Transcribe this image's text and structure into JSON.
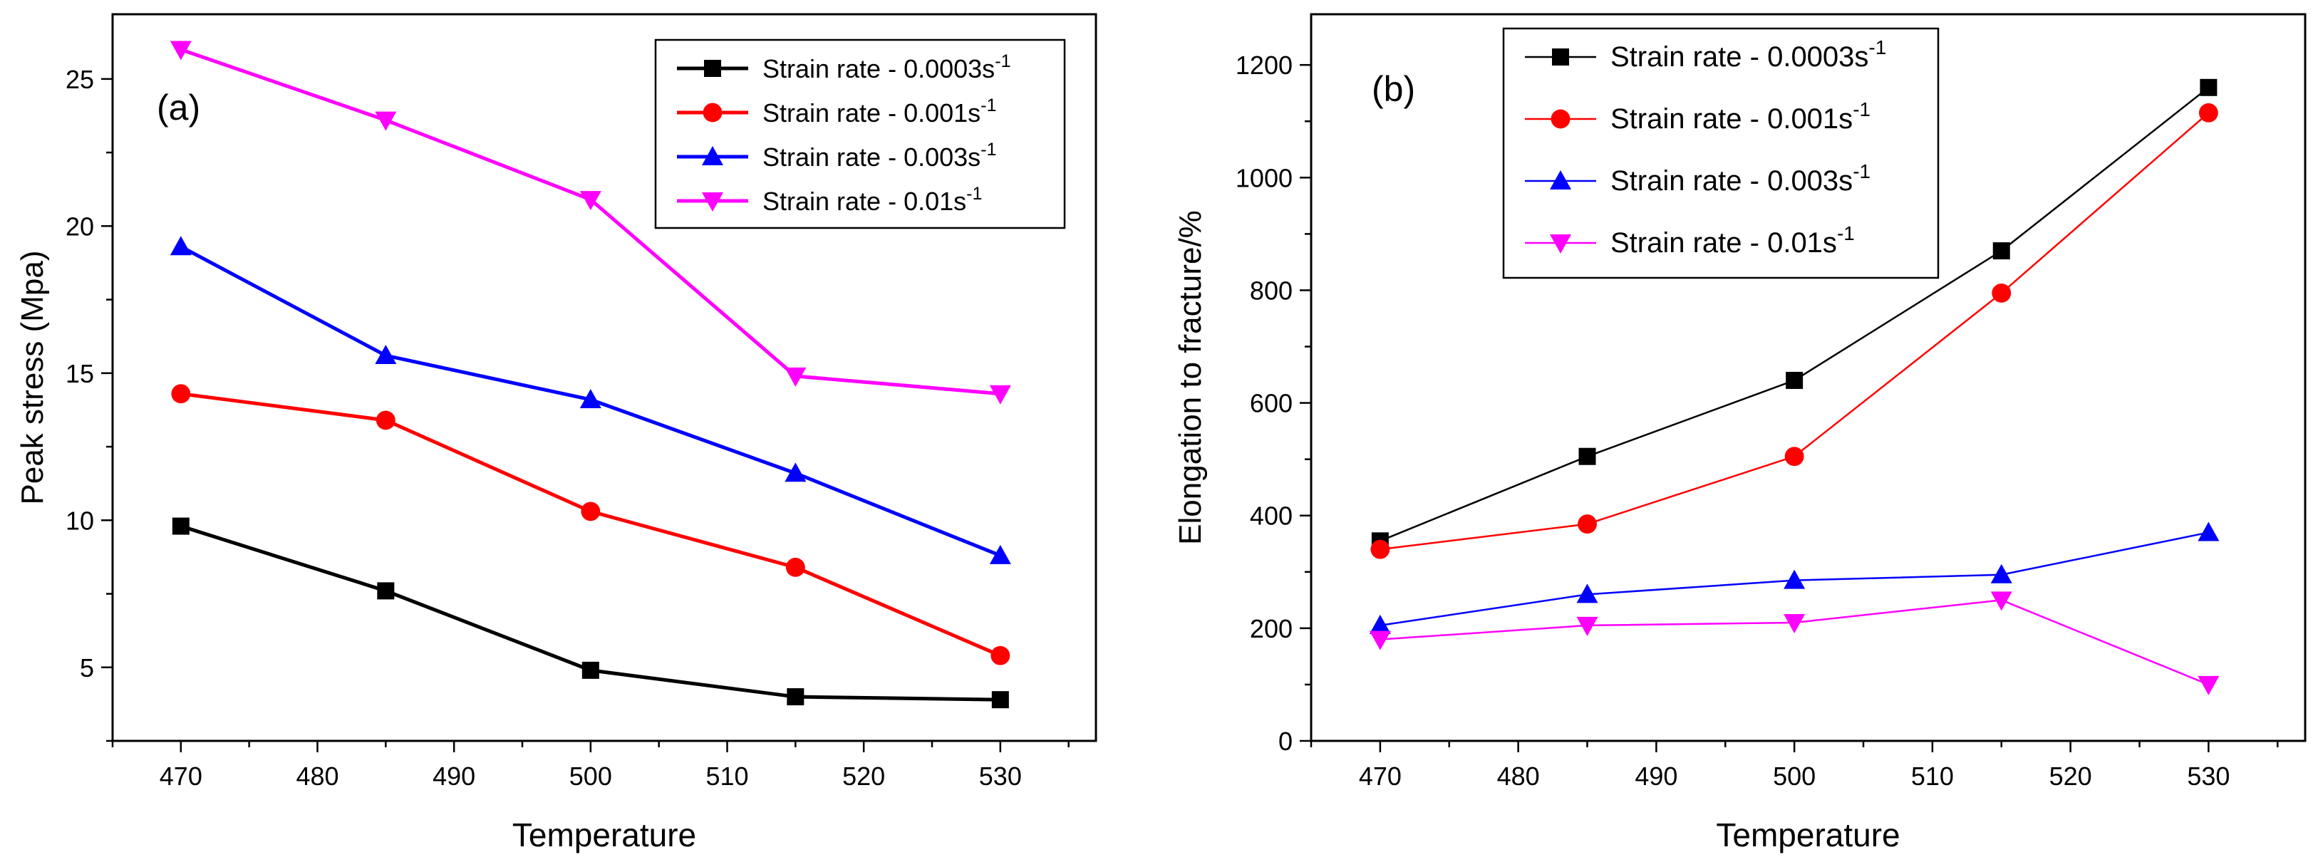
{
  "chart_data": [
    {
      "type": "line",
      "panel_label": "(a)",
      "xlabel": "Temperature",
      "ylabel": "Peak stress (Mpa)",
      "xlim": [
        465,
        537
      ],
      "ylim": [
        2.5,
        27.2
      ],
      "xticks": [
        470,
        480,
        490,
        500,
        510,
        520,
        530
      ],
      "yticks": [
        5,
        10,
        15,
        20,
        25
      ],
      "legend_position": "top-right",
      "x": [
        470,
        485,
        500,
        515,
        530
      ],
      "series": [
        {
          "name": "Strain rate - 0.0003s",
          "sup": "-1",
          "color": "#000000",
          "marker": "square",
          "values": [
            9.8,
            7.6,
            4.9,
            4.0,
            3.9
          ]
        },
        {
          "name": "Strain rate - 0.001s",
          "sup": "-1",
          "color": "#ff0000",
          "marker": "circle",
          "values": [
            14.3,
            13.4,
            10.3,
            8.4,
            5.4
          ]
        },
        {
          "name": "Strain rate - 0.003s",
          "sup": "-1",
          "color": "#0000ff",
          "marker": "triangle-up",
          "values": [
            19.3,
            15.6,
            14.1,
            11.6,
            8.8
          ]
        },
        {
          "name": "Strain rate - 0.01s",
          "sup": "-1",
          "color": "#ff00ff",
          "marker": "triangle-down",
          "values": [
            26.0,
            23.6,
            20.9,
            14.9,
            14.3
          ]
        }
      ]
    },
    {
      "type": "line",
      "panel_label": "(b)",
      "xlabel": "Temperature",
      "ylabel": "Elongation to fracture/%",
      "xlim": [
        465,
        537
      ],
      "ylim": [
        0,
        1290
      ],
      "xticks": [
        470,
        480,
        490,
        500,
        510,
        520,
        530
      ],
      "yticks": [
        0,
        200,
        400,
        600,
        800,
        1000,
        1200
      ],
      "legend_position": "top-right",
      "x": [
        470,
        485,
        500,
        515,
        530
      ],
      "series": [
        {
          "name": "Strain rate - 0.0003s",
          "sup": "-1",
          "color": "#000000",
          "marker": "square",
          "values": [
            355,
            505,
            640,
            870,
            1160
          ]
        },
        {
          "name": "Strain rate - 0.001s",
          "sup": "-1",
          "color": "#ff0000",
          "marker": "circle",
          "values": [
            340,
            385,
            505,
            795,
            1115
          ]
        },
        {
          "name": "Strain rate - 0.003s",
          "sup": "-1",
          "color": "#0000ff",
          "marker": "triangle-up",
          "values": [
            205,
            260,
            285,
            295,
            370
          ]
        },
        {
          "name": "Strain rate - 0.01s",
          "sup": "-1",
          "color": "#ff00ff",
          "marker": "triangle-down",
          "values": [
            180,
            205,
            210,
            250,
            100
          ]
        }
      ]
    }
  ]
}
